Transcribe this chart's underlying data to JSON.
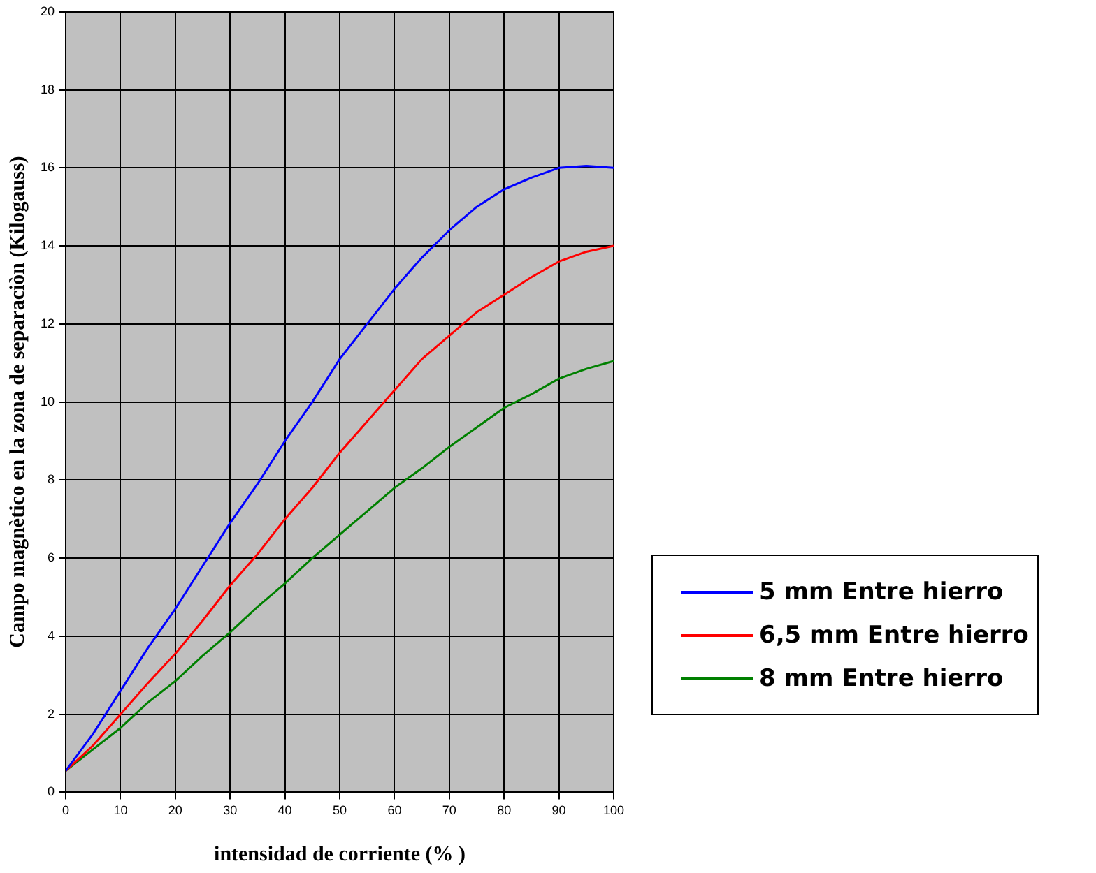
{
  "chart_data": {
    "type": "line",
    "xlabel": "intensidad de corriente (% )",
    "ylabel": "Campo magnètico en la zona de separaciòn (Kilogauss)",
    "x": [
      0,
      5,
      10,
      15,
      20,
      25,
      30,
      35,
      40,
      45,
      50,
      55,
      60,
      65,
      70,
      75,
      80,
      85,
      90,
      95,
      100
    ],
    "series": [
      {
        "name": "5 mm Entre hierro",
        "color": "#0000ff",
        "values": [
          0.55,
          1.5,
          2.6,
          3.7,
          4.7,
          5.8,
          6.9,
          7.9,
          9.0,
          10.0,
          11.1,
          12.0,
          12.9,
          13.7,
          14.4,
          15.0,
          15.45,
          15.75,
          16.0,
          16.05,
          16.0
        ]
      },
      {
        "name": "6,5 mm Entre hierro",
        "color": "#ff0000",
        "values": [
          0.55,
          1.2,
          2.0,
          2.8,
          3.55,
          4.4,
          5.3,
          6.1,
          7.0,
          7.8,
          8.7,
          9.5,
          10.3,
          11.1,
          11.7,
          12.3,
          12.75,
          13.2,
          13.6,
          13.85,
          14.0
        ]
      },
      {
        "name": "8 mm Entre hierro",
        "color": "#008000",
        "values": [
          0.55,
          1.1,
          1.65,
          2.3,
          2.85,
          3.5,
          4.1,
          4.75,
          5.35,
          6.0,
          6.6,
          7.2,
          7.8,
          8.3,
          8.85,
          9.35,
          9.85,
          10.2,
          10.6,
          10.85,
          11.05
        ]
      }
    ],
    "xlim": [
      0,
      100
    ],
    "xticks": [
      0,
      10,
      20,
      30,
      40,
      50,
      60,
      70,
      80,
      90,
      100
    ],
    "ylim": [
      0,
      20
    ],
    "yticks": [
      0,
      2,
      4,
      6,
      8,
      10,
      12,
      14,
      16,
      18,
      20
    ],
    "grid": true,
    "legend": "right",
    "marker": "none",
    "line_style": "solid"
  }
}
